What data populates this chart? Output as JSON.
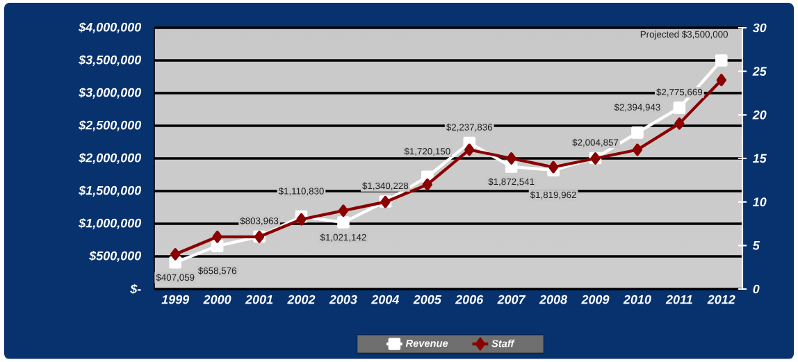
{
  "chart_data": {
    "type": "line",
    "categories": [
      "1999",
      "2000",
      "2001",
      "2002",
      "2003",
      "2004",
      "2005",
      "2006",
      "2007",
      "2008",
      "2009",
      "2010",
      "2011",
      "2012"
    ],
    "series": [
      {
        "name": "Revenue",
        "color": "#ffffff",
        "marker": "square",
        "values": [
          407059,
          658576,
          803963,
          1110830,
          1021142,
          1340228,
          1720150,
          2237836,
          1872541,
          1819962,
          2004857,
          2394943,
          2775669,
          3500000
        ],
        "value_labels": [
          "$407,059",
          "$658,576",
          "$803,963",
          "$1,110,830",
          "$1,021,142",
          "$1,340,228",
          "$1,720,150",
          "$2,237,836",
          "$1,872,541",
          "$1,819,962",
          "$2,004,857",
          "$2,394,943",
          "$2,775,669",
          "Projected $3,500,000"
        ]
      },
      {
        "name": "Staff",
        "color": "#8b0000",
        "marker": "diamond",
        "axis": "y2",
        "values": [
          4,
          6,
          6,
          8,
          9,
          10,
          12,
          16,
          15,
          14,
          15,
          16,
          19,
          24
        ]
      }
    ],
    "ylim": [
      0,
      4000000
    ],
    "yticks": [
      {
        "value": 0,
        "label": "$-"
      },
      {
        "value": 500000,
        "label": "$500,000"
      },
      {
        "value": 1000000,
        "label": "$1,000,000"
      },
      {
        "value": 1500000,
        "label": "$1,500,000"
      },
      {
        "value": 2000000,
        "label": "$2,000,000"
      },
      {
        "value": 2500000,
        "label": "$2,500,000"
      },
      {
        "value": 3000000,
        "label": "$3,000,000"
      },
      {
        "value": 3500000,
        "label": "$3,500,000"
      },
      {
        "value": 4000000,
        "label": "$4,000,000"
      }
    ],
    "y2lim": [
      0,
      30
    ],
    "y2ticks": [
      0,
      5,
      10,
      15,
      20,
      25,
      30
    ],
    "grid": "y",
    "legend": "bottom",
    "line_style": "solid"
  }
}
